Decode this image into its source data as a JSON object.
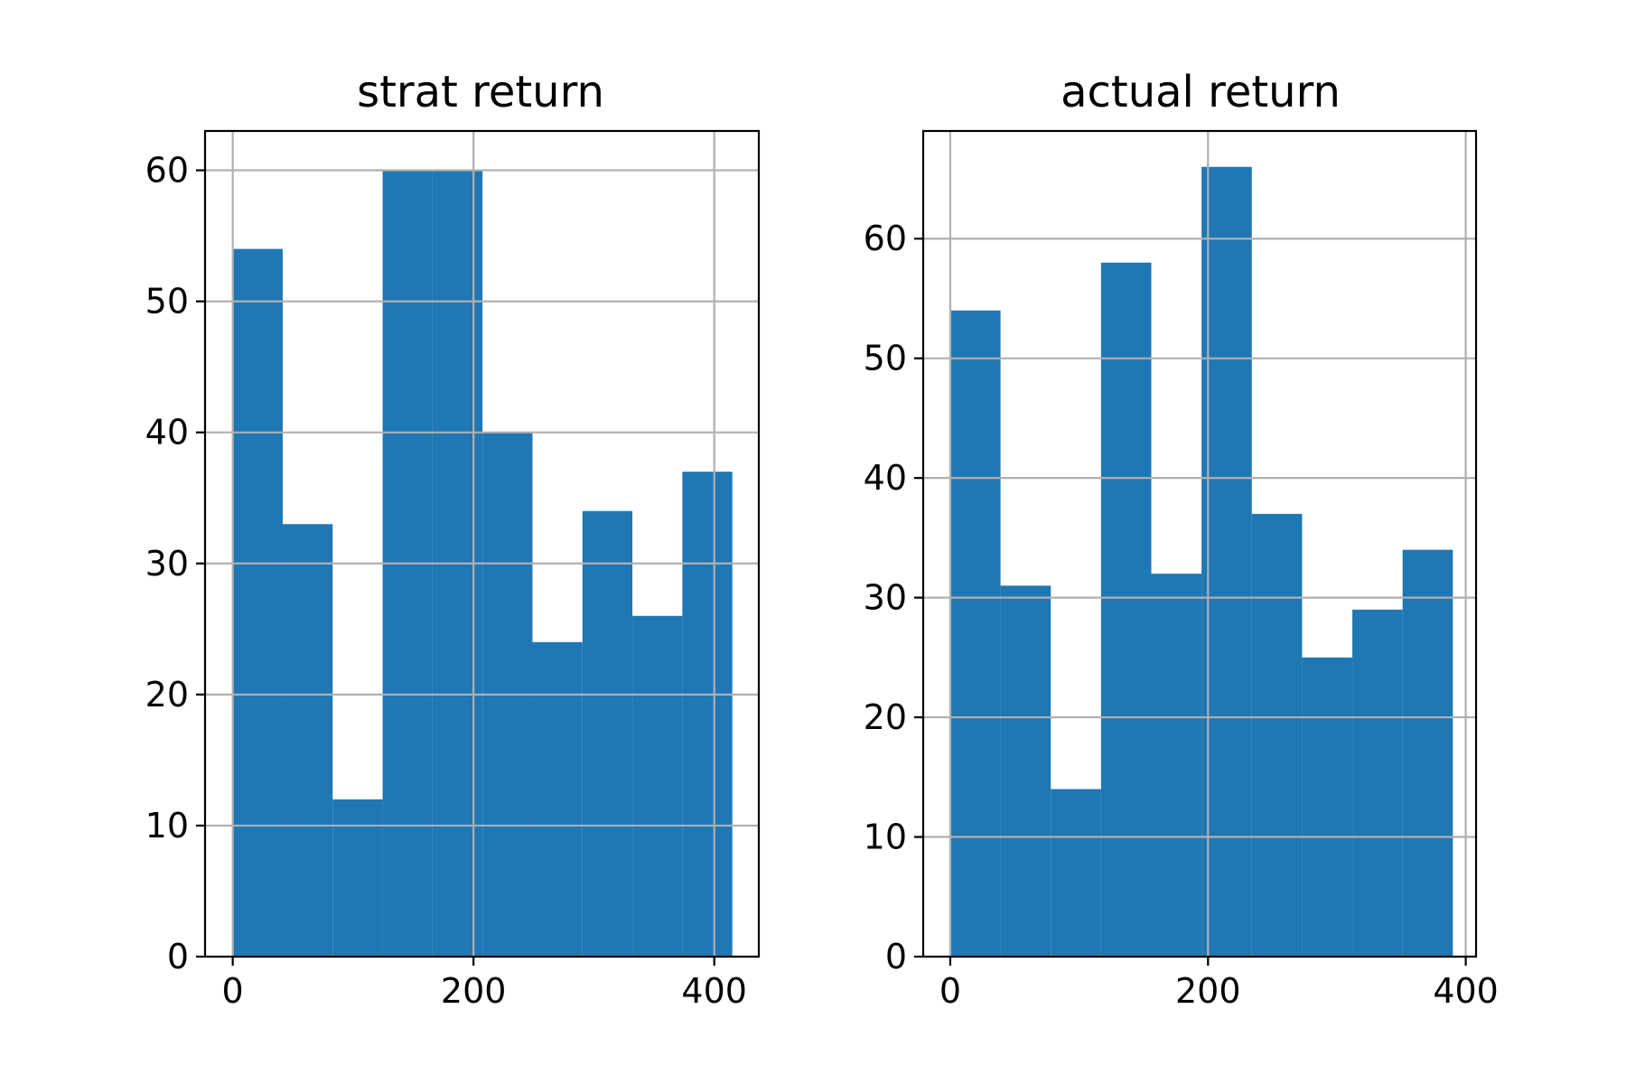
{
  "bar_color": "#1f77b4",
  "grid_color": "#b0b0b0",
  "chart_data": [
    {
      "type": "bar",
      "title": "strat return",
      "xlabel": "",
      "ylabel": "",
      "grid": true,
      "xlim": [
        -23,
        437
      ],
      "ylim": [
        0,
        63
      ],
      "xticks": [
        0,
        200,
        400
      ],
      "yticks": [
        0,
        10,
        20,
        30,
        40,
        50,
        60
      ],
      "bin_edges": [
        0,
        41.5,
        83,
        124.5,
        166,
        207.5,
        249,
        290.5,
        332,
        373.5,
        415
      ],
      "values": [
        54,
        33,
        12,
        60,
        60,
        40,
        24,
        34,
        26,
        37
      ]
    },
    {
      "type": "bar",
      "title": "actual return",
      "xlabel": "",
      "ylabel": "",
      "grid": true,
      "xlim": [
        -21,
        408
      ],
      "ylim": [
        0,
        69
      ],
      "xticks": [
        0,
        200,
        400
      ],
      "yticks": [
        0,
        10,
        20,
        30,
        40,
        50,
        60
      ],
      "bin_edges": [
        0,
        39,
        78,
        117,
        156,
        195,
        234,
        273,
        312,
        351,
        390
      ],
      "values": [
        54,
        31,
        14,
        58,
        32,
        66,
        37,
        25,
        29,
        34
      ]
    }
  ]
}
